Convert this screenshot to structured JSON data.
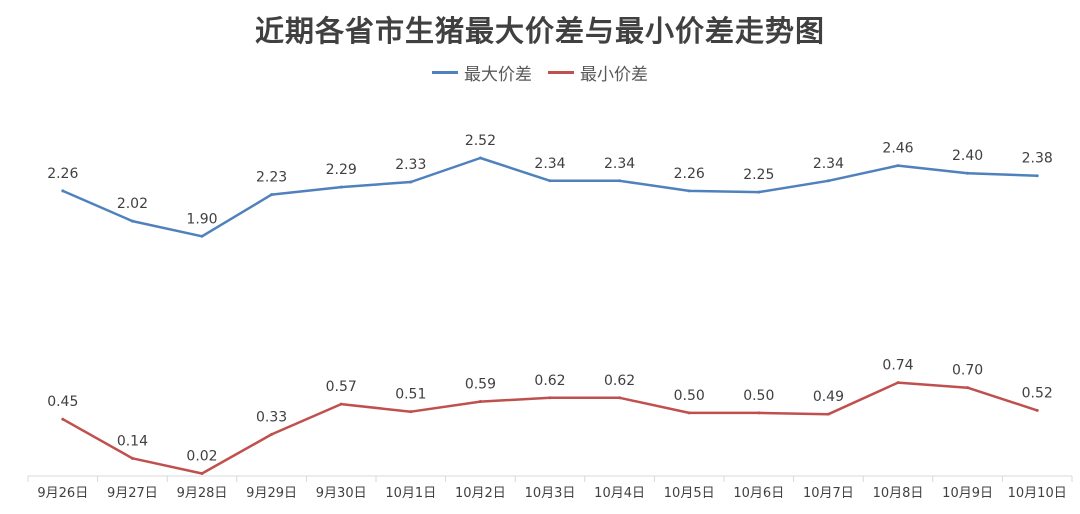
{
  "chart_data": {
    "type": "line",
    "title": "近期各省市生猪最大价差与最小价差走势图",
    "categories": [
      "9月26日",
      "9月27日",
      "9月28日",
      "9月29日",
      "9月30日",
      "10月1日",
      "10月2日",
      "10月3日",
      "10月4日",
      "10月5日",
      "10月6日",
      "10月7日",
      "10月8日",
      "10月9日",
      "10月10日"
    ],
    "series": [
      {
        "name": "最大价差",
        "color": "#4f81bd",
        "values": [
          2.26,
          2.02,
          1.9,
          2.23,
          2.29,
          2.33,
          2.52,
          2.34,
          2.34,
          2.26,
          2.25,
          2.34,
          2.46,
          2.4,
          2.38
        ],
        "labels": [
          "2.26",
          "2.02",
          "1.90",
          "2.23",
          "2.29",
          "2.33",
          "2.52",
          "2.34",
          "2.34",
          "2.26",
          "2.25",
          "2.34",
          "2.46",
          "2.40",
          "2.38"
        ]
      },
      {
        "name": "最小价差",
        "color": "#c0504d",
        "values": [
          0.45,
          0.14,
          0.02,
          0.33,
          0.57,
          0.51,
          0.59,
          0.62,
          0.62,
          0.5,
          0.5,
          0.49,
          0.74,
          0.7,
          0.52
        ],
        "labels": [
          "0.45",
          "0.14",
          "0.02",
          "0.33",
          "0.57",
          "0.51",
          "0.59",
          "0.62",
          "0.62",
          "0.50",
          "0.50",
          "0.49",
          "0.74",
          "0.70",
          "0.52"
        ]
      }
    ],
    "ylim": [
      0,
      2.56
    ],
    "grid": false,
    "legend": "top-center"
  }
}
